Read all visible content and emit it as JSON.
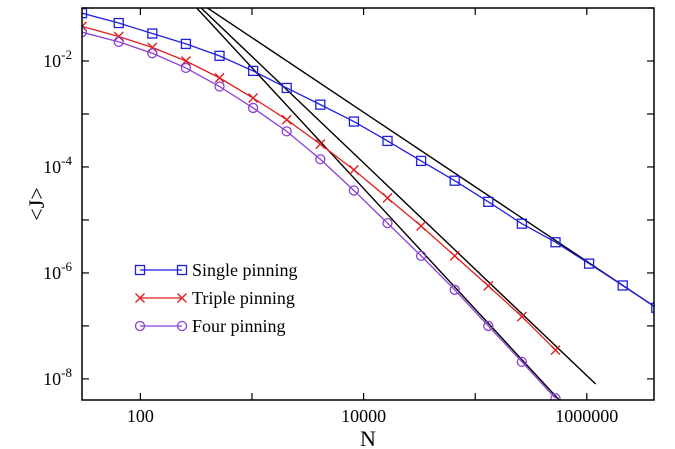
{
  "chart_data": {
    "type": "line",
    "xlabel": "N",
    "ylabel": "<J>",
    "xscale": "log",
    "yscale": "log",
    "xlim": [
      30,
      4000000
    ],
    "ylim": [
      4e-09,
      0.1
    ],
    "x_ticks": [
      {
        "value": 100,
        "label": "100"
      },
      {
        "value": 10000,
        "label": "10000"
      },
      {
        "value": 1000000,
        "label": "1000000"
      }
    ],
    "y_ticks": [
      {
        "value": 0.01,
        "base": "10",
        "exp": "-2"
      },
      {
        "value": 0.0001,
        "base": "10",
        "exp": "-4"
      },
      {
        "value": 1e-06,
        "base": "10",
        "exp": "-6"
      },
      {
        "value": 1e-08,
        "base": "10",
        "exp": "-8"
      }
    ],
    "legend_position": "bottom-left",
    "series": [
      {
        "name": "Single pinning",
        "color": "#1f1fe0",
        "marker": "square",
        "x": [
          30,
          64,
          128,
          256,
          512,
          1024,
          2048,
          4096,
          8192,
          16384,
          32768,
          65536,
          131072,
          262144,
          524288,
          1048576,
          2097152,
          4194304
        ],
        "y": [
          0.08,
          0.052,
          0.033,
          0.021,
          0.0125,
          0.0065,
          0.0031,
          0.0015,
          0.00072,
          0.00031,
          0.00013,
          5.5e-05,
          2.2e-05,
          8.5e-06,
          3.8e-06,
          1.5e-06,
          5.8e-07,
          2.2e-07
        ]
      },
      {
        "name": "Triple pinning",
        "color": "#e01f1f",
        "marker": "x",
        "x": [
          30,
          64,
          128,
          256,
          512,
          1024,
          2048,
          4096,
          8192,
          16384,
          32768,
          65536,
          131072,
          262144,
          524288
        ],
        "y": [
          0.045,
          0.029,
          0.018,
          0.01,
          0.0048,
          0.002,
          0.00078,
          0.00027,
          8.8e-05,
          2.6e-05,
          7.7e-06,
          2.1e-06,
          5.7e-07,
          1.5e-07,
          3.5e-08
        ]
      },
      {
        "name": "Four pinning",
        "color": "#8a3fd6",
        "marker": "circle",
        "x": [
          30,
          64,
          128,
          256,
          512,
          1024,
          2048,
          4096,
          8192,
          16384,
          32768,
          65536,
          131072,
          262144,
          524288
        ],
        "y": [
          0.035,
          0.023,
          0.014,
          0.0074,
          0.0033,
          0.0013,
          0.00047,
          0.00014,
          3.6e-05,
          8.7e-06,
          2.1e-06,
          4.8e-07,
          1e-07,
          2.1e-08,
          4.3e-09
        ]
      }
    ],
    "fit_lines": [
      {
        "color": "#000000",
        "x": [
          400,
          4194304
        ],
        "y": [
          0.1,
          2.2e-07
        ]
      },
      {
        "color": "#000000",
        "x": [
          350,
          1200000
        ],
        "y": [
          0.1,
          8e-09
        ]
      },
      {
        "color": "#000000",
        "x": [
          320,
          600000
        ],
        "y": [
          0.1,
          3.5e-09
        ]
      }
    ]
  }
}
